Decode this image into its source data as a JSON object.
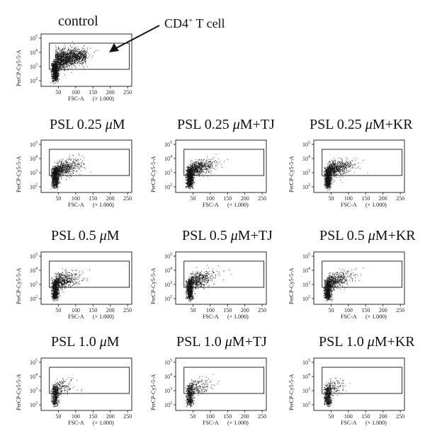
{
  "annotation": {
    "label_prefix": "CD4",
    "label_sup": "+",
    "label_suffix": " T cell"
  },
  "axis": {
    "ylabel": "PerCP-Cy5-5-A",
    "xlabel": "FSC-A",
    "x_unit": "(× 1.000)",
    "x_ticks": [
      "50",
      "100",
      "150",
      "200",
      "250"
    ],
    "y_ticks": [
      {
        "base": "10",
        "exp": "2"
      },
      {
        "base": "10",
        "exp": "3"
      },
      {
        "base": "10",
        "exp": "4"
      },
      {
        "base": "10",
        "exp": "5"
      }
    ]
  },
  "panels": [
    {
      "title": "control",
      "label": "control"
    },
    {
      "title_a": "PSL 0.25 ",
      "title_mu": "μ",
      "title_b": "M",
      "label": "PSL 0.25 μM"
    },
    {
      "title_a": "PSL 0.25 ",
      "title_mu": "μ",
      "title_b": "M+TJ",
      "label": "PSL 0.25 μM+TJ"
    },
    {
      "title_a": "PSL 0.25 ",
      "title_mu": "μ",
      "title_b": "M+KR",
      "label": "PSL 0.25 μM+KR"
    },
    {
      "title_a": "PSL 0.5 ",
      "title_mu": "μ",
      "title_b": "M",
      "label": "PSL 0.5 μM"
    },
    {
      "title_a": "PSL 0.5 ",
      "title_mu": "μ",
      "title_b": "M+TJ",
      "label": "PSL 0.5 μM+TJ"
    },
    {
      "title_a": "PSL 0.5 ",
      "title_mu": "μ",
      "title_b": "M+KR",
      "label": "PSL 0.5 μM+KR"
    },
    {
      "title_a": "PSL 1.0 ",
      "title_mu": "μ",
      "title_b": "M",
      "label": "PSL 1.0 μM"
    },
    {
      "title_a": "PSL 1.0 ",
      "title_mu": "μ",
      "title_b": "M+TJ",
      "label": "PSL 1.0 μM+TJ"
    },
    {
      "title_a": "PSL 1.0 ",
      "title_mu": "μ",
      "title_b": "M+KR",
      "label": "PSL 1.0 μM+KR"
    }
  ],
  "chart_data": {
    "type": "scatter",
    "xlim": [
      0,
      262
    ],
    "ylim_log10": [
      1.6,
      5.3
    ],
    "y_scale": "log",
    "grid": false,
    "gate": {
      "x": [
        24,
        255
      ],
      "y_log10": [
        2.8,
        4.65
      ]
    },
    "clouds": [
      {
        "panel": "control",
        "n": 2600,
        "spread": 1.0,
        "upper": 0.62
      },
      {
        "panel": "PSL 0.25 μM",
        "n": 1500,
        "spread": 0.85,
        "upper": 0.45
      },
      {
        "panel": "PSL 0.25 μM+TJ",
        "n": 1500,
        "spread": 0.85,
        "upper": 0.45
      },
      {
        "panel": "PSL 0.25 μM+KR",
        "n": 1500,
        "spread": 0.85,
        "upper": 0.45
      },
      {
        "panel": "PSL 0.5 μM",
        "n": 1300,
        "spread": 0.8,
        "upper": 0.42
      },
      {
        "panel": "PSL 0.5 μM+TJ",
        "n": 1300,
        "spread": 0.85,
        "upper": 0.42
      },
      {
        "panel": "PSL 0.5 μM+KR",
        "n": 1300,
        "spread": 0.8,
        "upper": 0.42
      },
      {
        "panel": "PSL 1.0 μM",
        "n": 700,
        "spread": 0.6,
        "upper": 0.25
      },
      {
        "panel": "PSL 1.0 μM+TJ",
        "n": 750,
        "spread": 0.65,
        "upper": 0.28
      },
      {
        "panel": "PSL 1.0 μM+KR",
        "n": 700,
        "spread": 0.6,
        "upper": 0.25
      }
    ]
  }
}
